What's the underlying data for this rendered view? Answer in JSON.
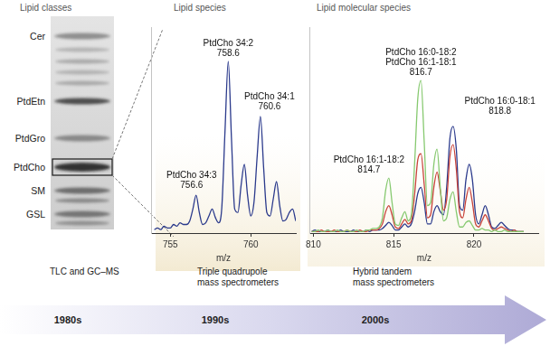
{
  "tlc": {
    "title": "Lipid classes",
    "bands": [
      "Cer",
      "PtdEtn",
      "PtdGro",
      "PtdCho",
      "SM",
      "GSL"
    ],
    "highlight": "PtdCho"
  },
  "chart_data": [
    {
      "type": "line",
      "title": "Lipid species",
      "x_label": "m/z",
      "x": [
        754,
        754.2,
        754.4,
        754.6,
        754.8,
        755,
        755.2,
        755.4,
        755.6,
        755.8,
        756,
        756.2,
        756.4,
        756.6,
        756.8,
        757,
        757.2,
        757.4,
        757.6,
        757.8,
        758,
        758.2,
        758.4,
        758.6,
        758.8,
        759,
        759.2,
        759.4,
        759.6,
        759.8,
        760,
        760.2,
        760.4,
        760.6,
        760.8,
        761,
        761.2,
        761.4,
        761.6,
        761.8,
        762,
        762.2,
        762.4,
        762.6,
        762.8
      ],
      "series": [
        {
          "color": "#2b3a8c",
          "values": [
            2,
            3,
            2,
            4,
            3,
            3,
            5,
            4,
            6,
            5,
            5,
            7,
            14,
            22,
            12,
            5,
            6,
            10,
            14,
            9,
            6,
            15,
            60,
            100,
            55,
            14,
            12,
            28,
            40,
            22,
            10,
            18,
            45,
            68,
            38,
            12,
            10,
            20,
            30,
            16,
            7,
            8,
            12,
            14,
            7
          ]
        }
      ],
      "xlim": [
        753.8,
        762.8
      ],
      "xticks": [
        755,
        760
      ],
      "ylim": [
        0,
        120
      ],
      "tick_labels": "x",
      "grid": false,
      "annotations": [
        {
          "lines": [
            "PtdCho 34:3",
            "756.6"
          ],
          "at": 756.6
        },
        {
          "lines": [
            "PtdCho 34:2",
            "758.6"
          ],
          "at": 758.6
        },
        {
          "lines": [
            "PtdCho 34:1",
            "760.6"
          ],
          "at": 760.6
        }
      ]
    },
    {
      "type": "line",
      "title": "Lipid molecular species",
      "x_label": "m/z",
      "x": [
        809.9,
        810.1,
        810.3,
        810.5,
        810.7,
        810.9,
        811.1,
        811.3,
        811.5,
        811.7,
        811.9,
        812.1,
        812.3,
        812.5,
        812.7,
        812.9,
        813.1,
        813.3,
        813.5,
        813.7,
        813.9,
        814.1,
        814.3,
        814.5,
        814.7,
        814.9,
        815.1,
        815.3,
        815.5,
        815.7,
        815.9,
        816.1,
        816.3,
        816.5,
        816.7,
        816.9,
        817.1,
        817.3,
        817.5,
        817.7,
        817.9,
        818.1,
        818.3,
        818.5,
        818.7,
        818.9,
        819.1,
        819.3,
        819.5,
        819.7,
        819.9,
        820.1,
        820.3,
        820.5,
        820.7,
        820.9,
        821.1,
        821.3,
        821.5,
        821.7,
        821.9,
        822.1,
        822.3,
        822.5,
        822.7,
        822.9,
        823.1
      ],
      "series": [
        {
          "color": "#86c96f",
          "values": [
            1,
            1,
            2,
            1,
            1,
            2,
            1,
            1,
            2,
            1,
            1,
            2,
            1,
            1,
            2,
            1,
            1,
            2,
            2,
            3,
            3,
            4,
            10,
            28,
            36,
            20,
            6,
            5,
            10,
            14,
            8,
            12,
            45,
            88,
            100,
            60,
            18,
            20,
            45,
            55,
            30,
            8,
            10,
            22,
            27,
            14,
            4,
            4,
            7,
            8,
            5,
            2,
            2,
            3,
            2,
            2,
            1,
            2,
            1,
            1,
            2,
            1,
            1,
            1,
            1,
            1,
            1
          ]
        },
        {
          "color": "#c8433a",
          "values": [
            1,
            1,
            1,
            2,
            1,
            1,
            1,
            2,
            1,
            1,
            1,
            2,
            1,
            1,
            1,
            2,
            1,
            1,
            2,
            2,
            2,
            3,
            6,
            14,
            18,
            12,
            4,
            3,
            6,
            9,
            6,
            8,
            25,
            48,
            52,
            32,
            10,
            12,
            30,
            40,
            28,
            15,
            22,
            50,
            58,
            42,
            14,
            10,
            22,
            30,
            20,
            6,
            4,
            8,
            12,
            8,
            3,
            2,
            3,
            4,
            3,
            2,
            1,
            2,
            1,
            1,
            1
          ]
        },
        {
          "color": "#2b3a8c",
          "values": [
            1,
            2,
            1,
            1,
            1,
            2,
            1,
            1,
            1,
            2,
            1,
            1,
            1,
            2,
            1,
            1,
            1,
            2,
            1,
            2,
            2,
            2,
            3,
            5,
            7,
            5,
            2,
            2,
            4,
            6,
            4,
            6,
            14,
            26,
            30,
            20,
            6,
            6,
            14,
            18,
            14,
            12,
            30,
            62,
            70,
            55,
            18,
            15,
            35,
            45,
            35,
            12,
            6,
            12,
            18,
            12,
            4,
            3,
            5,
            7,
            5,
            3,
            2,
            2,
            1,
            1,
            1
          ]
        }
      ],
      "xlim": [
        809.8,
        824
      ],
      "xticks": [
        810,
        815,
        820
      ],
      "ylim": [
        0,
        135
      ],
      "tick_labels": "x",
      "grid": false,
      "annotations": [
        {
          "lines": [
            "PtdCho 16:1-18:2",
            "814.7"
          ],
          "at": 814.7
        },
        {
          "lines": [
            "PtdCho 16:0-18:2",
            "PtdCho 16:1-18:1",
            "816.7"
          ],
          "at": 816.7
        },
        {
          "lines": [
            "PtdCho 16:0-18:1",
            "818.8"
          ],
          "at": 818.8
        }
      ]
    }
  ],
  "timeline": [
    {
      "method": [
        "TLC and GC–MS"
      ],
      "era": "1980s"
    },
    {
      "method": [
        "Triple quadrupole",
        "mass spectrometers"
      ],
      "era": "1990s"
    },
    {
      "method": [
        "Hybrid tandem",
        "mass spectrometers"
      ],
      "era": "2000s"
    }
  ]
}
